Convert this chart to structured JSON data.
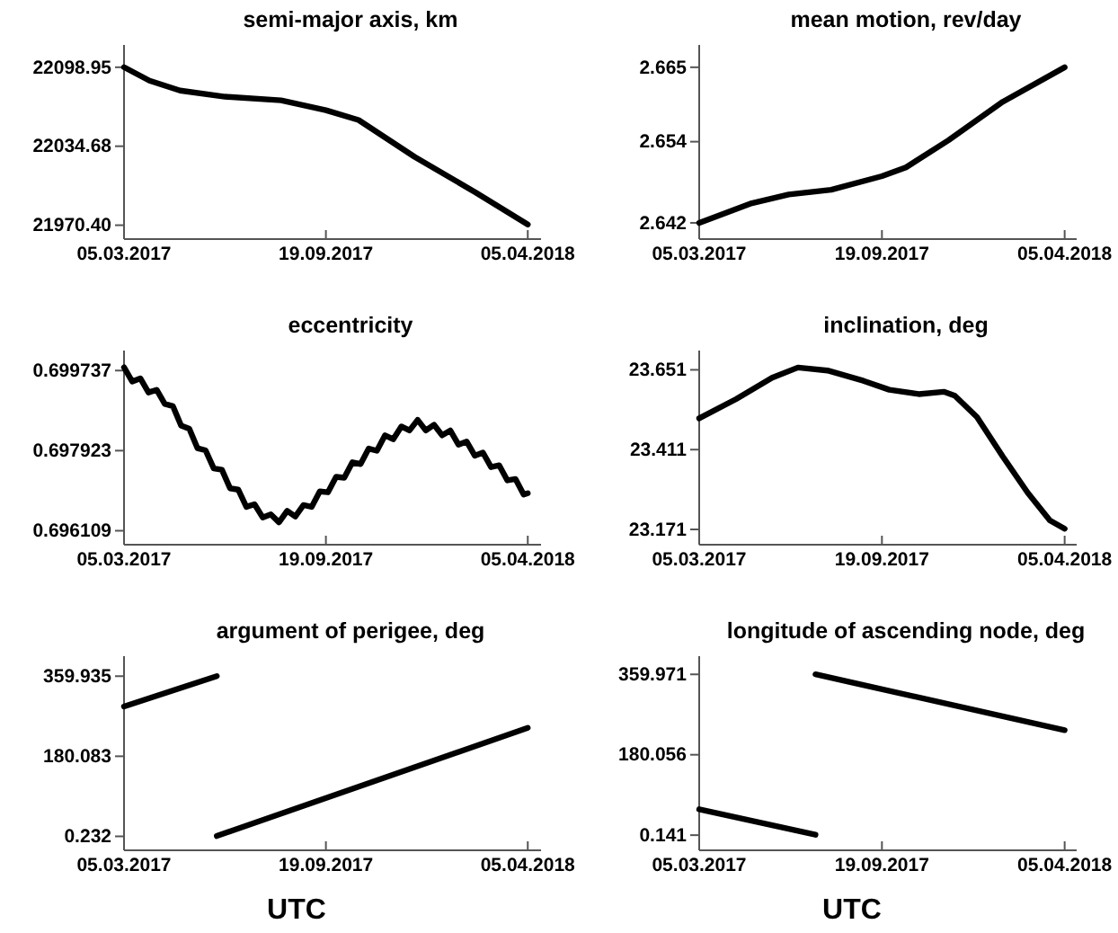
{
  "chart_data": [
    {
      "type": "line",
      "title": "semi-major axis, km",
      "xlim": [
        "2017-03-05",
        "2018-04-18"
      ],
      "xticks": [
        {
          "value": "2017-03-05",
          "label": "05.03.2017"
        },
        {
          "value": "2017-09-19",
          "label": "19.09.2017"
        },
        {
          "value": "2018-04-05",
          "label": "05.04.2018"
        }
      ],
      "ylim": [
        21959.1,
        22117.1
      ],
      "yticks": [
        22098.95,
        22034.68,
        {
          "value": 21970.4,
          "label": "21970.40"
        }
      ],
      "series": [
        {
          "color": "#000000",
          "x": [
            "2017-03-05",
            "2017-03-30",
            "2017-04-29",
            "2017-06-12",
            "2017-08-06",
            "2017-09-19",
            "2017-10-21",
            "2017-12-15",
            "2018-02-13",
            "2018-04-05"
          ],
          "values": [
            22099,
            22088,
            22080,
            22075,
            22072,
            22064,
            22056,
            22026,
            21997,
            21971
          ]
        }
      ]
    },
    {
      "type": "line",
      "title": "mean motion, rev/day",
      "xlim": [
        "2017-03-05",
        "2018-04-18"
      ],
      "xticks": [
        {
          "value": "2017-03-05",
          "label": "05.03.2017"
        },
        {
          "value": "2017-09-19",
          "label": "19.09.2017"
        },
        {
          "value": "2018-04-05",
          "label": "05.04.2018"
        }
      ],
      "ylim": [
        2.6396,
        2.6683
      ],
      "yticks": [
        2.665,
        2.654,
        2.642
      ],
      "series": [
        {
          "color": "#000000",
          "x": [
            "2017-03-05",
            "2017-05-01",
            "2017-06-10",
            "2017-07-26",
            "2017-09-19",
            "2017-10-15",
            "2017-11-30",
            "2018-01-28",
            "2018-04-05"
          ],
          "values": [
            2.642,
            2.6449,
            2.6462,
            2.6469,
            2.6489,
            2.6502,
            2.6542,
            2.6599,
            2.665
          ]
        }
      ]
    },
    {
      "type": "line",
      "title": "eccentricity",
      "xlim": [
        "2017-03-05",
        "2018-04-18"
      ],
      "xticks": [
        {
          "value": "2017-03-05",
          "label": "05.03.2017"
        },
        {
          "value": "2017-09-19",
          "label": "19.09.2017"
        },
        {
          "value": "2018-04-05",
          "label": "05.04.2018"
        }
      ],
      "ylim": [
        0.695793,
        0.70019
      ],
      "yticks": [
        0.699737,
        0.697923,
        0.696109
      ],
      "series": [
        {
          "color": "#000000",
          "x": [
            "2017-03-05",
            "2017-03-13",
            "2017-03-21",
            "2017-03-29",
            "2017-04-06",
            "2017-04-14",
            "2017-04-22",
            "2017-04-30",
            "2017-05-08",
            "2017-05-16",
            "2017-05-24",
            "2017-06-01",
            "2017-06-09",
            "2017-06-17",
            "2017-06-25",
            "2017-07-03",
            "2017-07-11",
            "2017-07-19",
            "2017-07-27",
            "2017-08-04",
            "2017-08-12",
            "2017-08-20",
            "2017-08-28",
            "2017-09-05",
            "2017-09-13",
            "2017-09-21",
            "2017-09-29",
            "2017-10-07",
            "2017-10-15",
            "2017-10-23",
            "2017-10-31",
            "2017-11-08",
            "2017-11-16",
            "2017-11-24",
            "2017-12-02",
            "2017-12-10",
            "2017-12-18",
            "2017-12-26",
            "2018-01-03",
            "2018-01-11",
            "2018-01-19",
            "2018-01-27",
            "2018-02-04",
            "2018-02-12",
            "2018-02-20",
            "2018-02-28",
            "2018-03-08",
            "2018-03-16",
            "2018-03-24",
            "2018-04-01",
            "2018-04-05"
          ],
          "values": [
            0.69981,
            0.69949,
            0.69956,
            0.69924,
            0.6993,
            0.69898,
            0.69893,
            0.69849,
            0.69842,
            0.69798,
            0.69793,
            0.69752,
            0.69749,
            0.69707,
            0.69704,
            0.69665,
            0.69671,
            0.69641,
            0.69648,
            0.6963,
            0.69656,
            0.69643,
            0.69669,
            0.69665,
            0.697,
            0.69698,
            0.69733,
            0.69731,
            0.69766,
            0.69762,
            0.69797,
            0.69792,
            0.69827,
            0.69818,
            0.69847,
            0.69838,
            0.69862,
            0.69838,
            0.69851,
            0.69827,
            0.69838,
            0.69806,
            0.69813,
            0.69781,
            0.69788,
            0.69755,
            0.69759,
            0.69725,
            0.69728,
            0.69693,
            0.69696
          ]
        }
      ]
    },
    {
      "type": "line",
      "title": "inclination, deg",
      "xlim": [
        "2017-03-05",
        "2018-04-18"
      ],
      "xticks": [
        {
          "value": "2017-03-05",
          "label": "05.03.2017"
        },
        {
          "value": "2017-09-19",
          "label": "19.09.2017"
        },
        {
          "value": "2018-04-05",
          "label": "05.04.2018"
        }
      ],
      "ylim": [
        23.125,
        23.709
      ],
      "yticks": [
        23.651,
        23.411,
        23.171
      ],
      "series": [
        {
          "color": "#000000",
          "x": [
            "2017-03-05",
            "2017-04-14",
            "2017-05-23",
            "2017-06-20",
            "2017-07-22",
            "2017-08-30",
            "2017-09-27",
            "2017-10-29",
            "2017-11-25",
            "2017-12-07",
            "2017-12-31",
            "2018-01-28",
            "2018-02-24",
            "2018-03-20",
            "2018-04-05"
          ],
          "values": [
            23.505,
            23.563,
            23.627,
            23.658,
            23.649,
            23.618,
            23.591,
            23.578,
            23.585,
            23.573,
            23.509,
            23.39,
            23.281,
            23.198,
            23.173
          ]
        }
      ]
    },
    {
      "type": "line",
      "title": "argument of perigee, deg",
      "xlabel": "UTC",
      "xlim": [
        "2017-03-05",
        "2018-04-18"
      ],
      "xticks": [
        {
          "value": "2017-03-05",
          "label": "05.03.2017"
        },
        {
          "value": "2017-09-19",
          "label": "19.09.2017"
        },
        {
          "value": "2018-04-05",
          "label": "05.04.2018"
        }
      ],
      "ylim": [
        -31.1,
        404.9
      ],
      "yticks": [
        359.935,
        180.083,
        0.232
      ],
      "series": [
        {
          "color": "#000000",
          "x": [
            "2017-03-05",
            "2017-06-04"
          ],
          "values": [
            292,
            360
          ]
        },
        {
          "color": "#000000",
          "x": [
            "2017-06-04",
            "2018-04-05"
          ],
          "values": [
            1,
            244
          ]
        }
      ]
    },
    {
      "type": "line",
      "title": "longitude of ascending node, deg",
      "xlabel": "UTC",
      "xlim": [
        "2017-03-05",
        "2018-04-18"
      ],
      "xticks": [
        {
          "value": "2017-03-05",
          "label": "05.03.2017"
        },
        {
          "value": "2017-09-19",
          "label": "19.09.2017"
        },
        {
          "value": "2018-04-05",
          "label": "05.04.2018"
        }
      ],
      "ylim": [
        -33.8,
        400.7
      ],
      "yticks": [
        359.971,
        180.056,
        0.141
      ],
      "series": [
        {
          "color": "#000000",
          "x": [
            "2017-03-05",
            "2017-07-09"
          ],
          "values": [
            58,
            1
          ]
        },
        {
          "color": "#000000",
          "x": [
            "2017-07-09",
            "2018-04-05"
          ],
          "values": [
            360,
            235
          ]
        }
      ]
    }
  ]
}
